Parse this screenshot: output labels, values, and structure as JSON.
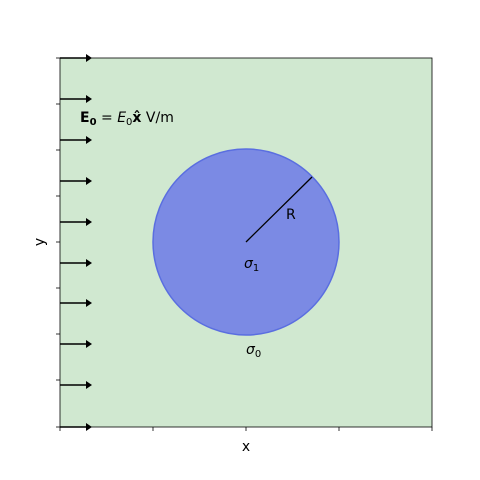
{
  "diagram": {
    "field_label_bold": "E",
    "field_label_bold_sub": "0",
    "field_label_eq": " = ",
    "field_label_italic": "E",
    "field_label_italic_sub": "0",
    "field_label_vec": "x̂",
    "field_label_unit": " V/m",
    "radius_label": "R",
    "inner_conductivity_sym": "σ",
    "inner_conductivity_sub": "1",
    "outer_conductivity_sym": "σ",
    "outer_conductivity_sub": "0",
    "xlabel": "x",
    "ylabel": "y",
    "colors": {
      "background_region": "#d0e8d0",
      "sphere_fill": "#7b8ae4",
      "sphere_edge": "#5a6ee0",
      "arrow": "#000000",
      "radius_line": "#000000",
      "axes": "#000000"
    },
    "arrow_count": 9
  }
}
